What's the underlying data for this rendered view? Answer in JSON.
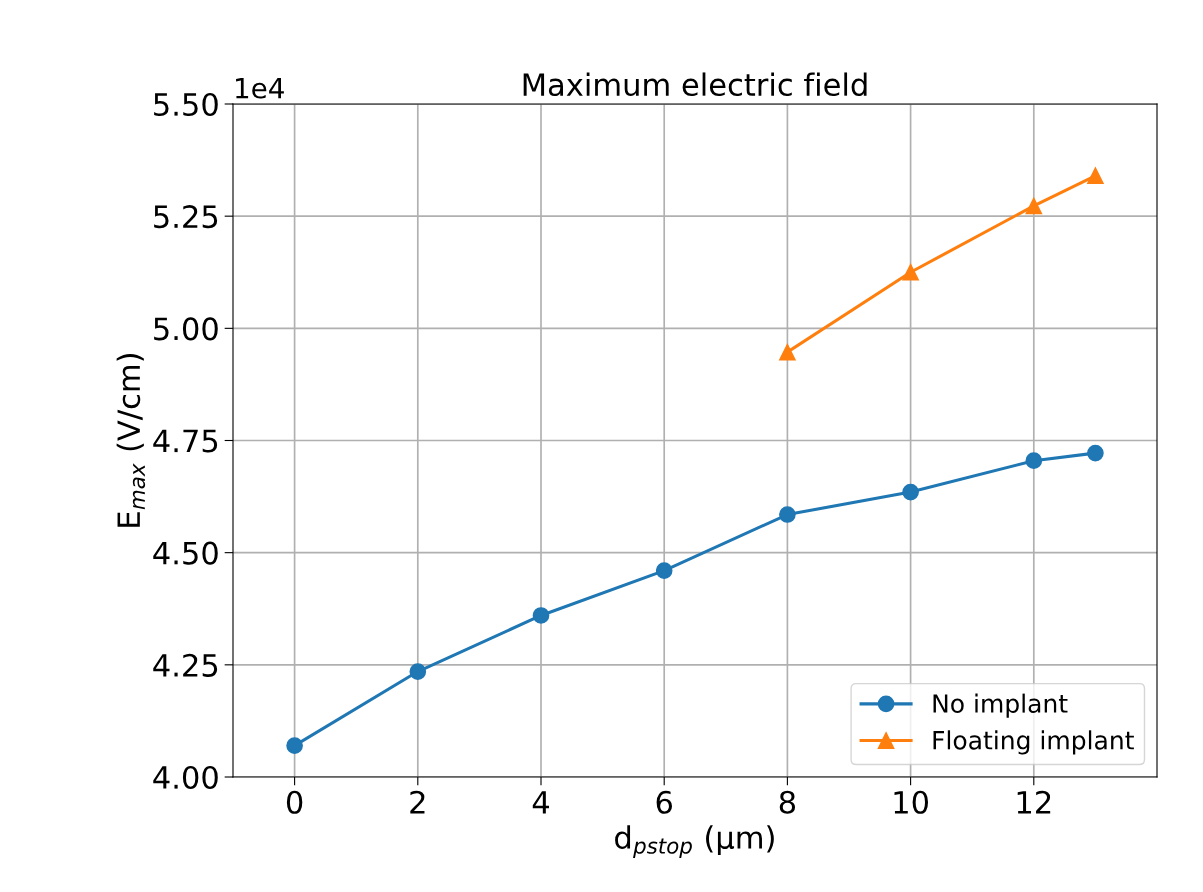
{
  "chart_data": {
    "type": "line",
    "title": "Maximum electric field",
    "xlabel": "d$_{pstop}$ (µm)",
    "ylabel": "E$_{max}$ (V/cm)",
    "annotations": [
      "1e4"
    ],
    "xlim": [
      -1,
      14
    ],
    "xticks": [
      0,
      2,
      4,
      6,
      8,
      10,
      12
    ],
    "ylim": [
      4.0,
      5.5
    ],
    "yticks": [
      {
        "value": 4.0,
        "label": "4.00"
      },
      {
        "value": 4.25,
        "label": "4.25"
      },
      {
        "value": 4.5,
        "label": "4.50"
      },
      {
        "value": 4.75,
        "label": "4.75"
      },
      {
        "value": 5.0,
        "label": "5.00"
      },
      {
        "value": 5.25,
        "label": "5.25"
      },
      {
        "value": 5.5,
        "label": "5.50"
      }
    ],
    "grid": true,
    "legend": "bottom right",
    "line_style": "solid",
    "series": [
      {
        "name": "No implant",
        "color": "#1f77b4",
        "marker": "circle",
        "x": [
          0,
          2,
          4,
          6,
          8,
          10,
          12,
          13
        ],
        "values": [
          4.07,
          4.235,
          4.36,
          4.46,
          4.585,
          4.635,
          4.705,
          4.722
        ]
      },
      {
        "name": "Floating implant",
        "color": "#ff7f0e",
        "marker": "triangle",
        "x": [
          8,
          10,
          12,
          13
        ],
        "values": [
          4.947,
          5.125,
          5.273,
          5.34
        ]
      }
    ]
  }
}
